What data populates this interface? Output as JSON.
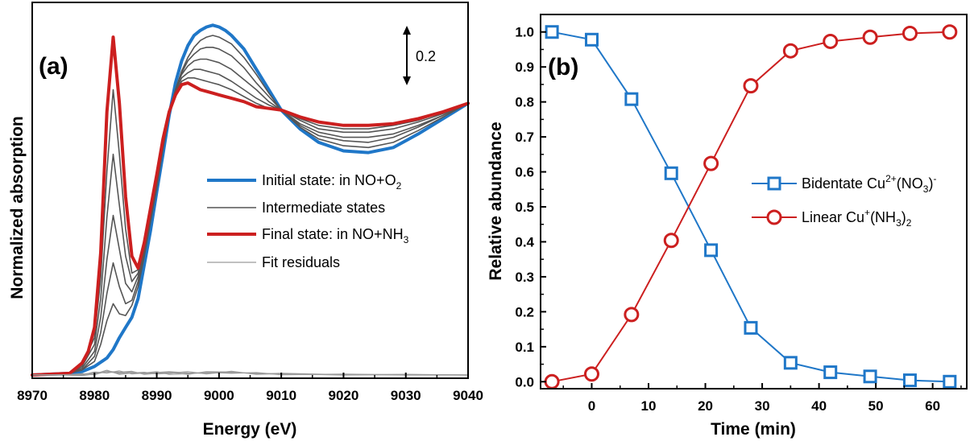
{
  "colors": {
    "blue": "#1f77c8",
    "red": "#cc1f1f",
    "dark": "#555555",
    "gray": "#9a9a9a"
  },
  "chart_data": [
    {
      "panel": "(a)",
      "type": "line",
      "xlabel": "Energy (eV)",
      "ylabel": "Normalized absorption",
      "xlim": [
        8970,
        9040
      ],
      "xticks": [
        "8970",
        "8980",
        "8990",
        "9000",
        "9010",
        "9020",
        "9030",
        "9040"
      ],
      "scale_bar": {
        "label": "0.2",
        "value": 0.2
      },
      "legend": {
        "placement": "center-right",
        "items": [
          {
            "text": "Initial state: in NO+O",
            "sub": "2",
            "style": "blue-thick"
          },
          {
            "text": "Intermediate states",
            "sub": "",
            "style": "dark"
          },
          {
            "text": "Final state: in NO+NH",
            "sub": "3",
            "style": "red-thick"
          },
          {
            "text": "Fit residuals",
            "sub": "",
            "style": "gray"
          }
        ]
      },
      "series": [
        {
          "name": "Initial state: in NO+O2",
          "color": "blue",
          "width": 4,
          "x": [
            8970,
            8976,
            8978,
            8980,
            8982,
            8983,
            8984,
            8985,
            8986,
            8987,
            8988,
            8989,
            8990,
            8991,
            8992,
            8993,
            8994,
            8995,
            8996,
            8997,
            8998,
            8999,
            9000,
            9001,
            9002,
            9004,
            9006,
            9008,
            9010,
            9013,
            9016,
            9020,
            9024,
            9028,
            9032,
            9036,
            9040
          ],
          "y": [
            0.0,
            0.01,
            0.02,
            0.05,
            0.1,
            0.15,
            0.22,
            0.28,
            0.34,
            0.45,
            0.65,
            0.85,
            1.08,
            1.3,
            1.53,
            1.72,
            1.85,
            1.94,
            2.0,
            2.03,
            2.05,
            2.06,
            2.05,
            2.03,
            2.0,
            1.92,
            1.8,
            1.68,
            1.56,
            1.45,
            1.37,
            1.32,
            1.31,
            1.34,
            1.42,
            1.51,
            1.6
          ]
        },
        {
          "name": "Intermediate 1",
          "color": "dark",
          "width": 1.6,
          "x": [
            8970,
            8976,
            8978,
            8980,
            8981,
            8982,
            8983,
            8984,
            8985,
            8986,
            8987,
            8988,
            8989,
            8990,
            8991,
            8992,
            8993,
            8994,
            8995,
            8996,
            8997,
            8998,
            8999,
            9000,
            9002,
            9004,
            9006,
            9008,
            9010,
            9013,
            9016,
            9020,
            9024,
            9028,
            9032,
            9036,
            9040
          ],
          "y": [
            0.0,
            0.01,
            0.03,
            0.08,
            0.18,
            0.32,
            0.42,
            0.36,
            0.35,
            0.41,
            0.52,
            0.7,
            0.9,
            1.1,
            1.33,
            1.53,
            1.68,
            1.79,
            1.87,
            1.93,
            1.97,
            1.99,
            2.0,
            1.99,
            1.95,
            1.87,
            1.77,
            1.66,
            1.56,
            1.46,
            1.39,
            1.35,
            1.34,
            1.37,
            1.44,
            1.52,
            1.6
          ]
        },
        {
          "name": "Intermediate 2",
          "color": "dark",
          "width": 1.6,
          "x": [
            8970,
            8976,
            8978,
            8980,
            8981,
            8982,
            8983,
            8984,
            8985,
            8986,
            8987,
            8988,
            8989,
            8990,
            8991,
            8992,
            8993,
            8994,
            8995,
            8996,
            8997,
            8998,
            8999,
            9000,
            9002,
            9004,
            9006,
            9008,
            9010,
            9013,
            9016,
            9020,
            9024,
            9028,
            9032,
            9036,
            9040
          ],
          "y": [
            0.0,
            0.01,
            0.03,
            0.11,
            0.25,
            0.48,
            0.66,
            0.52,
            0.42,
            0.44,
            0.55,
            0.73,
            0.93,
            1.13,
            1.35,
            1.54,
            1.68,
            1.78,
            1.85,
            1.89,
            1.92,
            1.93,
            1.93,
            1.92,
            1.88,
            1.81,
            1.72,
            1.64,
            1.56,
            1.47,
            1.41,
            1.38,
            1.37,
            1.4,
            1.46,
            1.53,
            1.6
          ]
        },
        {
          "name": "Intermediate 3",
          "color": "dark",
          "width": 1.6,
          "x": [
            8970,
            8976,
            8978,
            8980,
            8981,
            8982,
            8983,
            8984,
            8985,
            8986,
            8987,
            8988,
            8989,
            8990,
            8991,
            8992,
            8993,
            8994,
            8995,
            8996,
            8997,
            8998,
            8999,
            9000,
            9002,
            9004,
            9006,
            9008,
            9010,
            9013,
            9016,
            9020,
            9024,
            9028,
            9032,
            9036,
            9040
          ],
          "y": [
            0.0,
            0.01,
            0.04,
            0.14,
            0.34,
            0.68,
            0.94,
            0.74,
            0.54,
            0.49,
            0.58,
            0.76,
            0.96,
            1.16,
            1.37,
            1.55,
            1.68,
            1.77,
            1.82,
            1.85,
            1.86,
            1.86,
            1.85,
            1.84,
            1.8,
            1.74,
            1.68,
            1.61,
            1.56,
            1.48,
            1.43,
            1.4,
            1.4,
            1.42,
            1.47,
            1.53,
            1.6
          ]
        },
        {
          "name": "Intermediate 4",
          "color": "dark",
          "width": 1.6,
          "x": [
            8970,
            8976,
            8978,
            8980,
            8981,
            8982,
            8983,
            8984,
            8985,
            8986,
            8987,
            8988,
            8989,
            8990,
            8991,
            8992,
            8993,
            8994,
            8995,
            8996,
            8997,
            8998,
            8999,
            9000,
            9002,
            9004,
            9006,
            9008,
            9010,
            9013,
            9016,
            9020,
            9024,
            9028,
            9032,
            9036,
            9040
          ],
          "y": [
            0.0,
            0.01,
            0.05,
            0.18,
            0.45,
            0.93,
            1.3,
            1.0,
            0.7,
            0.55,
            0.6,
            0.77,
            0.97,
            1.17,
            1.38,
            1.55,
            1.67,
            1.75,
            1.78,
            1.8,
            1.8,
            1.79,
            1.78,
            1.77,
            1.73,
            1.68,
            1.63,
            1.59,
            1.56,
            1.5,
            1.45,
            1.43,
            1.43,
            1.45,
            1.49,
            1.54,
            1.6
          ]
        },
        {
          "name": "Intermediate 5",
          "color": "dark",
          "width": 1.6,
          "x": [
            8970,
            8976,
            8978,
            8980,
            8981,
            8982,
            8983,
            8984,
            8985,
            8986,
            8987,
            8988,
            8989,
            8990,
            8991,
            8992,
            8993,
            8994,
            8995,
            8996,
            8997,
            8998,
            8999,
            9000,
            9002,
            9004,
            9006,
            9008,
            9010,
            9013,
            9016,
            9020,
            9024,
            9028,
            9032,
            9036,
            9040
          ],
          "y": [
            0.0,
            0.01,
            0.06,
            0.22,
            0.57,
            1.2,
            1.68,
            1.3,
            0.86,
            0.6,
            0.62,
            0.78,
            0.98,
            1.18,
            1.39,
            1.55,
            1.66,
            1.73,
            1.75,
            1.75,
            1.74,
            1.73,
            1.72,
            1.71,
            1.68,
            1.64,
            1.6,
            1.57,
            1.56,
            1.51,
            1.47,
            1.45,
            1.45,
            1.47,
            1.5,
            1.55,
            1.6
          ]
        },
        {
          "name": "Final state: in NO+NH3",
          "color": "red",
          "width": 4,
          "x": [
            8970,
            8976,
            8978,
            8979,
            8980,
            8981,
            8982,
            8983,
            8984,
            8985,
            8986,
            8987,
            8988,
            8989,
            8990,
            8991,
            8992,
            8993,
            8994,
            8995,
            8996,
            8997,
            8998,
            8999,
            9000,
            9002,
            9004,
            9006,
            9008,
            9010,
            9013,
            9016,
            9020,
            9024,
            9028,
            9032,
            9036,
            9040
          ],
          "y": [
            0.0,
            0.01,
            0.07,
            0.14,
            0.28,
            0.72,
            1.55,
            1.99,
            1.6,
            1.05,
            0.7,
            0.63,
            0.78,
            0.98,
            1.18,
            1.39,
            1.55,
            1.65,
            1.71,
            1.72,
            1.7,
            1.68,
            1.67,
            1.66,
            1.65,
            1.63,
            1.61,
            1.58,
            1.57,
            1.56,
            1.52,
            1.49,
            1.47,
            1.47,
            1.48,
            1.51,
            1.55,
            1.6
          ]
        },
        {
          "name": "Fit residual 1",
          "color": "gray",
          "width": 1.2,
          "x": [
            8970,
            8975,
            8978,
            8980,
            8982,
            8984,
            8986,
            8988,
            8990,
            8992,
            8995,
            8998,
            9002,
            9006,
            9010,
            9020,
            9030,
            9040
          ],
          "y": [
            0.0,
            0.0,
            0.005,
            0.012,
            0.02,
            0.01,
            0.018,
            0.008,
            0.015,
            0.02,
            0.012,
            0.01,
            0.015,
            0.01,
            0.005,
            0.003,
            0.002,
            0.0
          ]
        },
        {
          "name": "Fit residual 2",
          "color": "gray",
          "width": 1.2,
          "x": [
            8970,
            8975,
            8978,
            8980,
            8982,
            8984,
            8986,
            8988,
            8990,
            8992,
            8995,
            8998,
            9002,
            9006,
            9010,
            9020,
            9030,
            9040
          ],
          "y": [
            0.0,
            0.0,
            -0.004,
            0.006,
            0.028,
            0.004,
            0.012,
            0.016,
            0.006,
            0.01,
            0.02,
            0.006,
            0.022,
            0.004,
            0.008,
            0.0,
            0.004,
            0.0
          ]
        },
        {
          "name": "Fit residual 3",
          "color": "gray",
          "width": 1.2,
          "x": [
            8970,
            8975,
            8978,
            8980,
            8982,
            8984,
            8986,
            8988,
            8990,
            8992,
            8995,
            8998,
            9002,
            9006,
            9010,
            9020,
            9030,
            9040
          ],
          "y": [
            0.0,
            0.002,
            0.0,
            0.018,
            0.012,
            0.024,
            0.006,
            0.012,
            0.02,
            0.004,
            0.008,
            0.016,
            0.01,
            0.014,
            0.002,
            0.005,
            0.0,
            0.0
          ]
        },
        {
          "name": "Fit residual 4",
          "color": "gray",
          "width": 1.2,
          "x": [
            8970,
            8975,
            8978,
            8980,
            8982,
            8984,
            8986,
            8988,
            8990,
            8992,
            8995,
            8998,
            9002,
            9006,
            9010,
            9020,
            9030,
            9040
          ],
          "y": [
            0.0,
            0.0,
            0.008,
            0.002,
            0.022,
            0.016,
            0.022,
            0.004,
            0.01,
            0.016,
            0.004,
            0.02,
            0.018,
            0.006,
            0.01,
            0.002,
            0.003,
            0.0
          ]
        }
      ]
    },
    {
      "panel": "(b)",
      "type": "line",
      "xlabel": "Time (min)",
      "ylabel": "Relative abundance",
      "xlim": [
        -9,
        66
      ],
      "ylim": [
        -0.02,
        1.05
      ],
      "xticks": [
        0,
        10,
        20,
        30,
        40,
        50,
        60
      ],
      "yticks": [
        "0.0",
        "0.1",
        "0.2",
        "0.3",
        "0.4",
        "0.5",
        "0.6",
        "0.7",
        "0.8",
        "0.9",
        "1.0"
      ],
      "legend": {
        "placement": "center-right",
        "items": [
          {
            "text": "Bidentate Cu",
            "sup": "2+",
            "mid": "(NO",
            "sub": "3",
            "end": ")",
            "sup2": "-",
            "marker": "square",
            "color": "blue"
          },
          {
            "text": "Linear Cu",
            "sup": "+",
            "mid": "(NH",
            "sub": "3",
            "end": ")",
            "sub2": "2",
            "marker": "circle",
            "color": "red"
          }
        ]
      },
      "series": [
        {
          "name": "Bidentate Cu2+(NO3)-",
          "marker": "square",
          "color": "blue",
          "x": [
            -7,
            0,
            7,
            14,
            21,
            28,
            35,
            42,
            49,
            56,
            63
          ],
          "y": [
            1.0,
            0.978,
            0.808,
            0.596,
            0.376,
            0.154,
            0.054,
            0.027,
            0.015,
            0.004,
            0.0
          ]
        },
        {
          "name": "Linear Cu+(NH3)2",
          "marker": "circle",
          "color": "red",
          "x": [
            -7,
            0,
            7,
            14,
            21,
            28,
            35,
            42,
            49,
            56,
            63
          ],
          "y": [
            0.0,
            0.022,
            0.192,
            0.404,
            0.624,
            0.846,
            0.946,
            0.973,
            0.985,
            0.996,
            1.0
          ]
        }
      ]
    }
  ]
}
